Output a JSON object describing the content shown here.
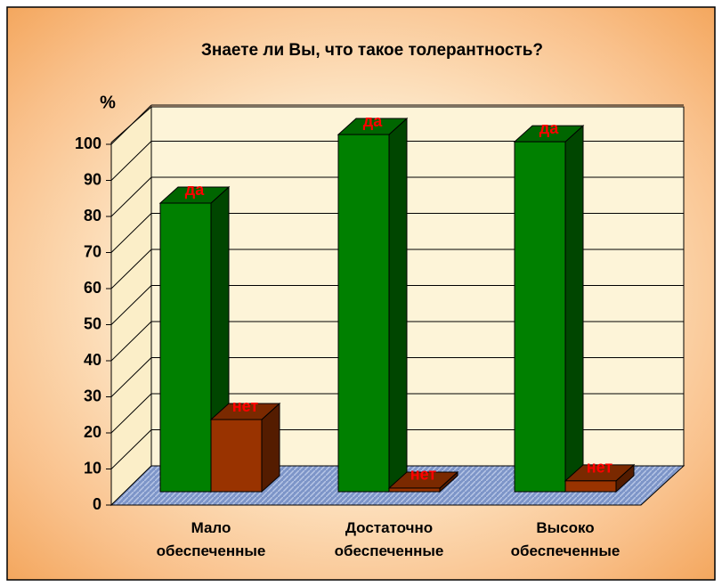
{
  "chart_data": {
    "type": "bar3d",
    "title": "Знаете ли Вы, что такое толерантность?",
    "y_label": "%",
    "categories": [
      "Мало обеспеченные",
      "Достаточно обеспеченные",
      "Высоко обеспеченные"
    ],
    "series": [
      {
        "name": "да",
        "color": "#008000",
        "values": [
          80,
          99,
          97
        ]
      },
      {
        "name": "нет",
        "color": "#993300",
        "values": [
          20,
          1,
          3
        ]
      }
    ],
    "ylim": [
      0,
      100
    ],
    "yticks": [
      0,
      10,
      20,
      30,
      40,
      50,
      60,
      70,
      80,
      90,
      100
    ],
    "grid": true
  }
}
